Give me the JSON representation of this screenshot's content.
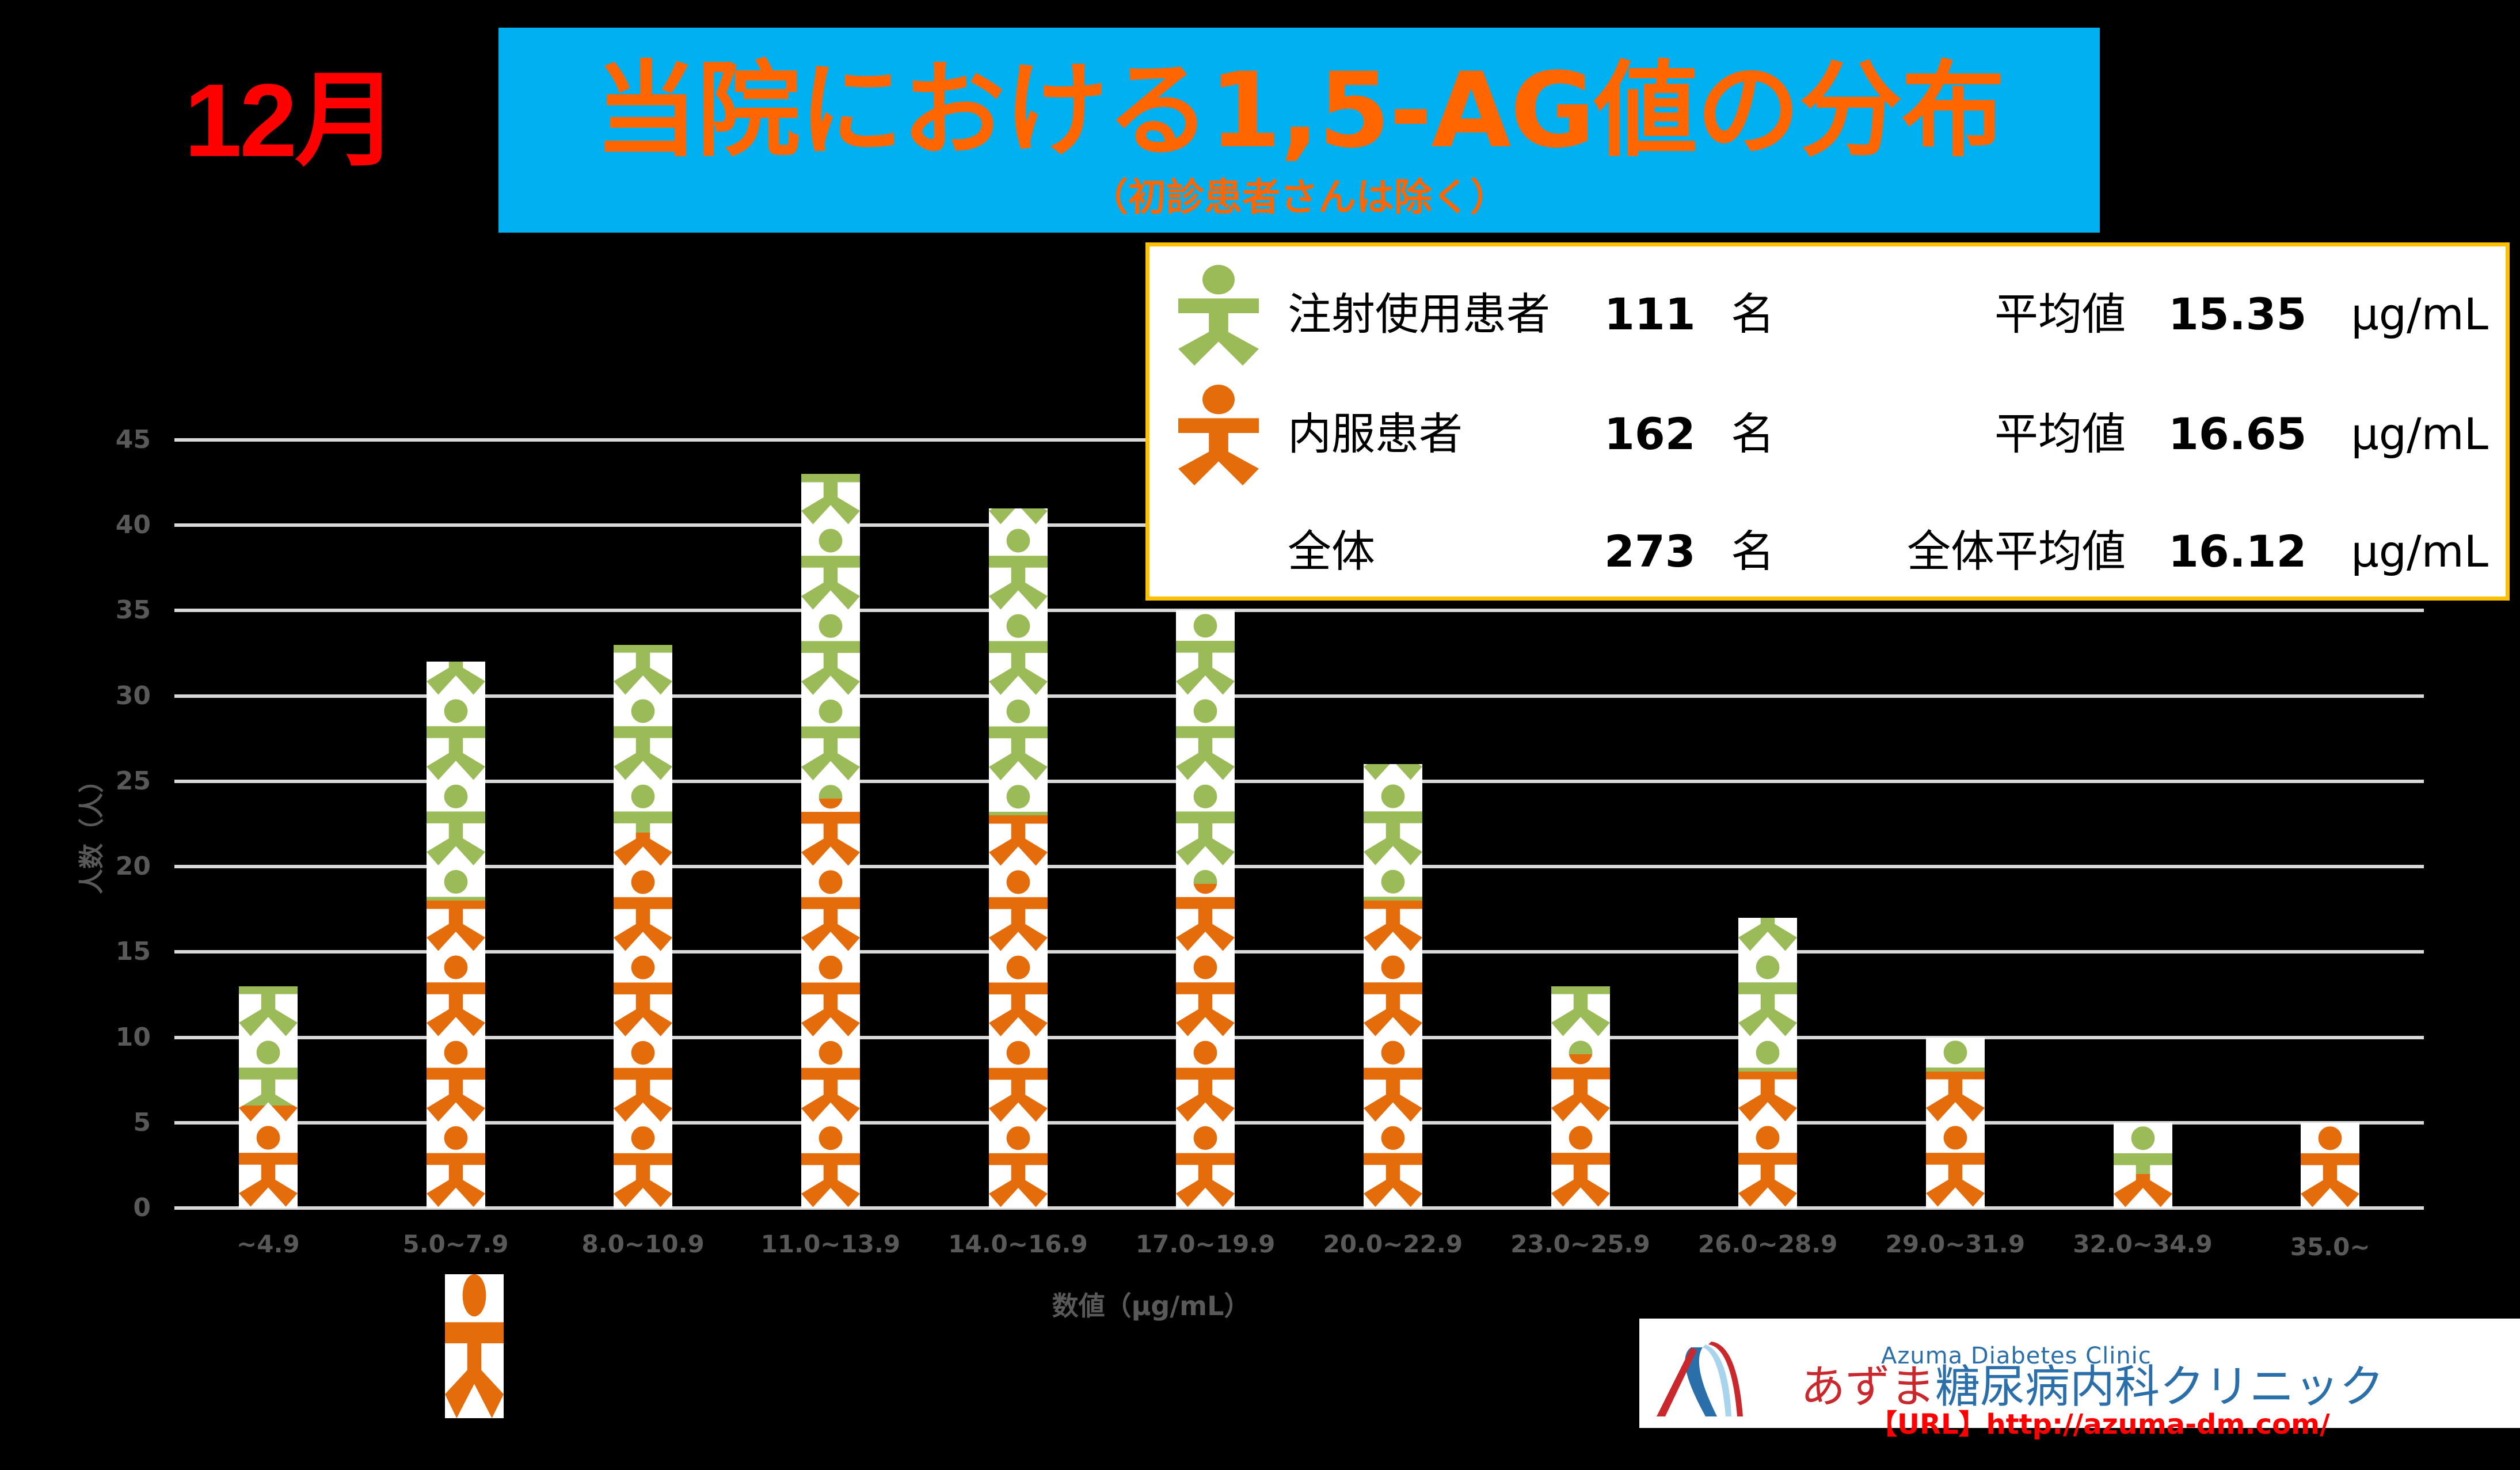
{
  "header": {
    "month": "12月",
    "title": "当院における1,5-AG値の分布",
    "subtitle": "（初診患者さんは除く）"
  },
  "colors": {
    "title_bg": "#00B0F0",
    "title_text": "#FF6600",
    "month_text": "#FF0000",
    "injection": "#9BBB59",
    "oral": "#E46C0A",
    "legend_border": "#FFC000",
    "axis_text": "#595959",
    "gridline": "#D9D9D9"
  },
  "legend": {
    "rows": [
      {
        "icon": "person-green-icon",
        "label": "注射使用患者",
        "count": "111",
        "count_unit": "名",
        "avg_label": "平均値",
        "avg": "15.35",
        "avg_unit": "μg/mL"
      },
      {
        "icon": "person-orange-icon",
        "label": "内服患者",
        "count": "162",
        "count_unit": "名",
        "avg_label": "平均値",
        "avg": "16.65",
        "avg_unit": "μg/mL"
      },
      {
        "icon": "",
        "label": "全体",
        "count": "273",
        "count_unit": "名",
        "avg_label": "全体平均値",
        "avg": "16.12",
        "avg_unit": "μg/mL"
      }
    ]
  },
  "chart_data": {
    "type": "bar",
    "stacked": true,
    "title": "当院における1,5-AG値の分布",
    "subtitle": "（初診患者さんは除く）",
    "xlabel": "数値（μg/mL）",
    "ylabel": "人数（人）",
    "ylim": [
      0,
      45
    ],
    "yticks": [
      "0",
      "5",
      "10",
      "15",
      "20",
      "25",
      "30",
      "35",
      "40",
      "45"
    ],
    "grid": true,
    "legend_position": "top-right box",
    "categories": [
      "~4.9",
      "5.0~7.9",
      "8.0~10.9",
      "11.0~13.9",
      "14.0~16.9",
      "17.0~19.9",
      "20.0~22.9",
      "23.0~25.9",
      "26.0~28.9",
      "29.0~31.9",
      "32.0~34.9",
      "35.0~"
    ],
    "series": [
      {
        "name": "内服患者",
        "color": "#E46C0A",
        "values": [
          6,
          18,
          22,
          24,
          23,
          19,
          18,
          9,
          8,
          8,
          2,
          5
        ]
      },
      {
        "name": "注射使用患者",
        "color": "#9BBB59",
        "values": [
          7,
          14,
          11,
          19,
          18,
          16,
          8,
          4,
          9,
          2,
          3,
          0
        ]
      }
    ],
    "totals": [
      13,
      32,
      33,
      43,
      41,
      35,
      26,
      13,
      17,
      10,
      5,
      5
    ]
  },
  "footer": {
    "logo_en": "Azuma Diabetes Clinic",
    "logo_jp_red": "あずま",
    "logo_jp_blue": "糖尿病内科クリニック",
    "url": "【URL】http://azuma-dm.com/"
  }
}
